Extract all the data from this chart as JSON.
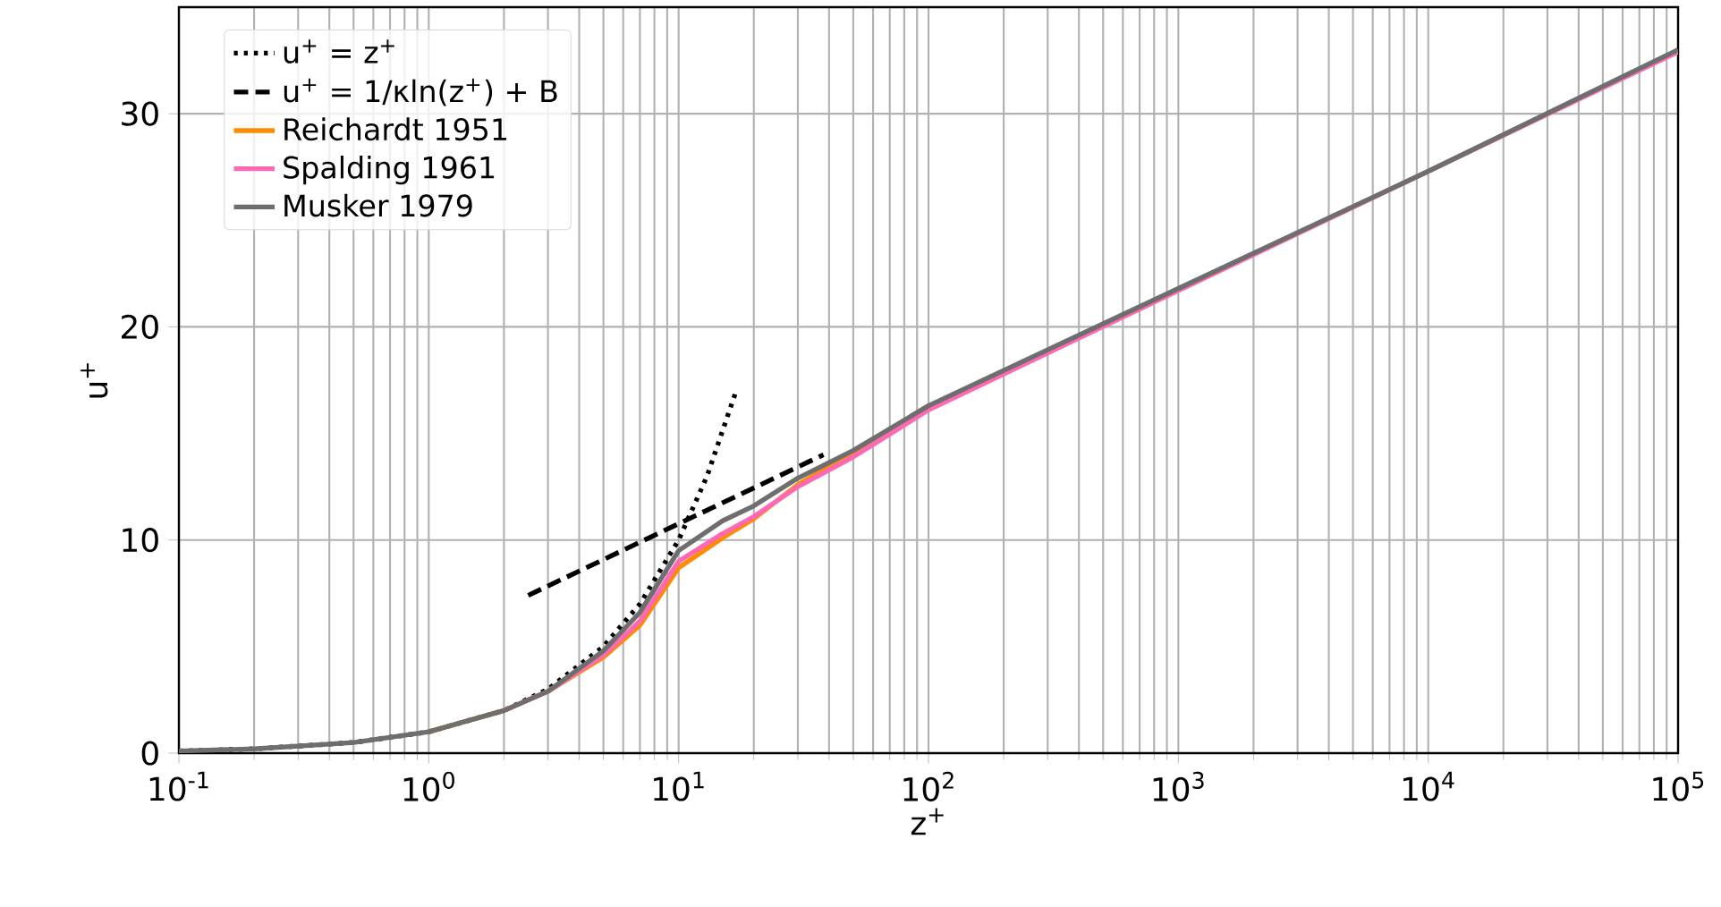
{
  "chart_data": {
    "type": "line",
    "xlabel": "z$^{+}$",
    "ylabel": "u$^{+}$",
    "log": "x",
    "xlim": [
      0.1,
      100000
    ],
    "ylim": [
      0,
      35
    ],
    "xticks": [
      {
        "value": 0.1,
        "label": "10$^{-1}$"
      },
      {
        "value": 1,
        "label": "10$^{0}$"
      },
      {
        "value": 10,
        "label": "10$^{1}$"
      },
      {
        "value": 100,
        "label": "10$^{2}$"
      },
      {
        "value": 1000,
        "label": "10$^{3}$"
      },
      {
        "value": 10000,
        "label": "10$^{4}$"
      },
      {
        "value": 100000,
        "label": "10$^{5}$"
      }
    ],
    "yticks": [
      0,
      10,
      20,
      30
    ],
    "grid": true,
    "legend": "top left",
    "series": [
      {
        "name": "u$^{+}$ = z$^{+}$",
        "color": "#000000",
        "line_style": "dotted",
        "x": [
          0.1,
          0.2,
          0.5,
          1,
          2,
          3,
          5,
          7,
          10,
          13,
          17
        ],
        "values": [
          0.1,
          0.2,
          0.5,
          1,
          2,
          3,
          5,
          7,
          10,
          13,
          17
        ]
      },
      {
        "name": "u$^{+}$ = 1/κln(z$^{+}$) + B",
        "color": "#000000",
        "line_style": "dashed",
        "x": [
          2.5,
          38
        ],
        "values": [
          7.4,
          14.0
        ]
      },
      {
        "name": "Reichardt 1951",
        "color": "#ff8c00",
        "line_style": "solid",
        "x": [
          1,
          2,
          3,
          5,
          7,
          10,
          15,
          20,
          30,
          50,
          100
        ],
        "values": [
          1.0,
          2.0,
          2.9,
          4.5,
          6.0,
          8.7,
          10.1,
          11.0,
          12.6,
          14.1,
          16.3
        ]
      },
      {
        "name": "Spalding 1961",
        "color": "#ff69b4",
        "line_style": "solid",
        "x": [
          2,
          3,
          5,
          7,
          10,
          15,
          20,
          30,
          50,
          100,
          1000,
          10000,
          100000
        ],
        "values": [
          2.0,
          2.9,
          4.6,
          6.2,
          9.0,
          10.3,
          11.1,
          12.5,
          13.9,
          16.1,
          21.7,
          27.3,
          32.9
        ]
      },
      {
        "name": "Musker 1979",
        "color": "#6e6e6e",
        "line_style": "solid",
        "x": [
          0.1,
          0.2,
          0.5,
          1,
          2,
          3,
          5,
          7,
          10,
          15,
          20,
          30,
          50,
          100,
          1000,
          10000,
          100000
        ],
        "values": [
          0.1,
          0.2,
          0.5,
          1.0,
          2.0,
          2.9,
          4.8,
          6.6,
          9.5,
          10.9,
          11.6,
          12.9,
          14.2,
          16.3,
          21.8,
          27.3,
          33.0
        ]
      }
    ]
  }
}
